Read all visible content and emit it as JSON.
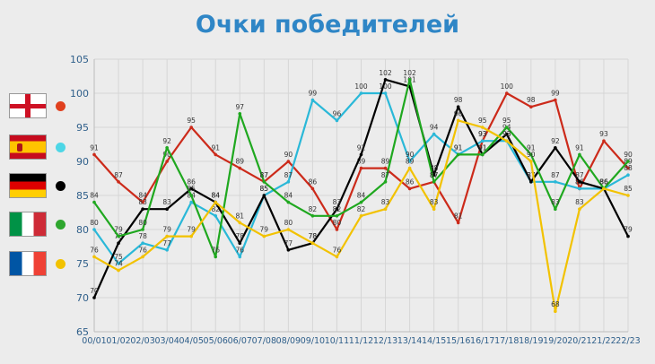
{
  "title": "Очки победителей",
  "legend": [
    {
      "flag": "england-flag",
      "color": "#e0401e"
    },
    {
      "flag": "spain-flag",
      "color": "#4dd6e6"
    },
    {
      "flag": "germany-flag",
      "color": "#000000"
    },
    {
      "flag": "italy-flag",
      "color": "#2ea62e"
    },
    {
      "flag": "france-flag",
      "color": "#f2c200"
    }
  ],
  "chart_data": {
    "type": "line",
    "title": "Очки победителей",
    "categories": [
      "00/01",
      "01/02",
      "02/03",
      "03/04",
      "04/05",
      "05/06",
      "06/07",
      "07/08",
      "08/09",
      "09/10",
      "10/11",
      "11/12",
      "12/13",
      "13/14",
      "14/15",
      "15/16",
      "16/17",
      "17/18",
      "18/19",
      "19/20",
      "20/21",
      "21/22",
      "22/23"
    ],
    "ylim": [
      65,
      105
    ],
    "yticks": [
      65,
      70,
      75,
      80,
      85,
      90,
      95,
      100,
      105
    ],
    "grid": true,
    "series": [
      {
        "key": "england",
        "color": "#cc2a1a",
        "values": [
          91,
          87,
          84,
          90,
          95,
          91,
          89,
          87,
          90,
          86,
          80,
          89,
          89,
          86,
          87,
          81,
          93,
          100,
          98,
          99,
          86,
          93,
          89
        ]
      },
      {
        "key": "spain",
        "color": "#2ab8d8",
        "values": [
          80,
          75,
          78,
          77,
          84,
          82,
          76,
          85,
          87,
          99,
          96,
          100,
          100,
          90,
          94,
          91,
          93,
          93,
          87,
          87,
          86,
          86,
          88
        ]
      },
      {
        "key": "germany",
        "color": "#000000",
        "values": [
          70,
          78,
          83,
          83,
          86,
          84,
          78,
          85,
          77,
          78,
          83,
          91,
          102,
          101,
          88,
          98,
          91,
          94,
          87,
          92,
          87,
          86,
          79
        ]
      },
      {
        "key": "italy",
        "color": "#1fa81f",
        "values": [
          84,
          79,
          80,
          92,
          85,
          76,
          97,
          87,
          84,
          82,
          82,
          84,
          87,
          102,
          87,
          91,
          91,
          95,
          91,
          83,
          91,
          86,
          90
        ]
      },
      {
        "key": "france",
        "color": "#f2c200",
        "values": [
          76,
          74,
          76,
          79,
          79,
          84,
          81,
          79,
          80,
          78,
          76,
          82,
          83,
          89,
          83,
          96,
          95,
          93,
          90,
          68,
          83,
          86,
          85
        ]
      }
    ]
  }
}
